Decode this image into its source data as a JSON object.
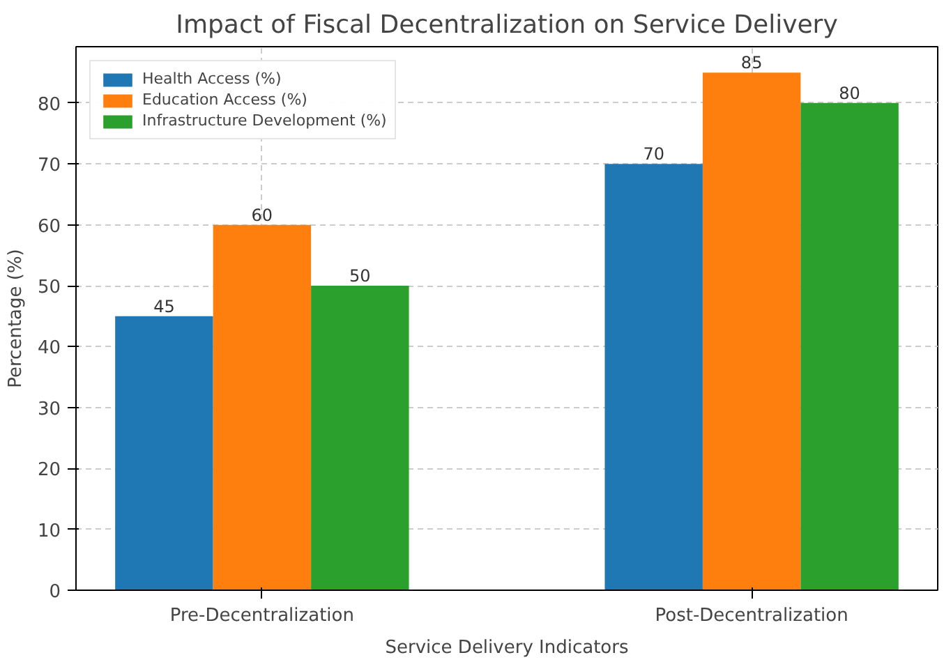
{
  "chart_data": {
    "type": "bar",
    "title": "Impact of Fiscal Decentralization on Service Delivery",
    "xlabel": "Service Delivery Indicators",
    "ylabel": "Percentage (%)",
    "categories": [
      "Pre-Decentralization",
      "Post-Decentralization"
    ],
    "series": [
      {
        "name": "Health Access (%)",
        "color": "#1f77b4",
        "values": [
          45,
          70
        ]
      },
      {
        "name": "Education Access (%)",
        "color": "#ff7f0e",
        "values": [
          60,
          85
        ]
      },
      {
        "name": "Infrastructure Development (%)",
        "color": "#2ca02c",
        "values": [
          50,
          80
        ]
      }
    ],
    "ylim": [
      0,
      89.25
    ],
    "yticks": [
      0,
      10,
      20,
      30,
      40,
      50,
      60,
      70,
      80
    ],
    "grid": true,
    "legend": "top left",
    "data_labels": true
  }
}
